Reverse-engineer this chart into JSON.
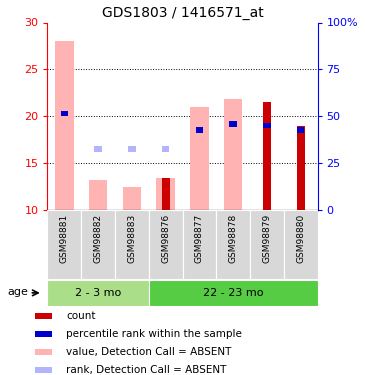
{
  "title": "GDS1803 / 1416571_at",
  "samples": [
    "GSM98881",
    "GSM98882",
    "GSM98883",
    "GSM98876",
    "GSM98877",
    "GSM98878",
    "GSM98879",
    "GSM98880"
  ],
  "group_labels": [
    "2 - 3 mo",
    "22 - 23 mo"
  ],
  "ylim_left": [
    10,
    30
  ],
  "ylim_right": [
    0,
    100
  ],
  "yticks_left": [
    10,
    15,
    20,
    25,
    30
  ],
  "yticks_right": [
    0,
    25,
    50,
    75,
    100
  ],
  "yticklabels_right": [
    "0",
    "25",
    "50",
    "75",
    "100%"
  ],
  "value_absent": [
    28.0,
    13.2,
    12.5,
    13.4,
    21.0,
    21.8,
    null,
    null
  ],
  "rank_absent": [
    null,
    16.5,
    16.5,
    16.5,
    null,
    null,
    null,
    null
  ],
  "count_red": [
    null,
    null,
    null,
    13.4,
    null,
    null,
    21.5,
    19.0
  ],
  "percentile_blue": [
    20.3,
    null,
    null,
    null,
    18.5,
    19.2,
    19.0,
    18.5
  ],
  "color_absent_value": "#ffb3b3",
  "color_absent_rank": "#b3b3ff",
  "color_count": "#cc0000",
  "color_percentile": "#0000cc",
  "bar_width": 0.55,
  "base": 10,
  "legend_items": [
    {
      "color": "#cc0000",
      "label": "count"
    },
    {
      "color": "#0000cc",
      "label": "percentile rank within the sample"
    },
    {
      "color": "#ffb3b3",
      "label": "value, Detection Call = ABSENT"
    },
    {
      "color": "#b3b3ff",
      "label": "rank, Detection Call = ABSENT"
    }
  ]
}
